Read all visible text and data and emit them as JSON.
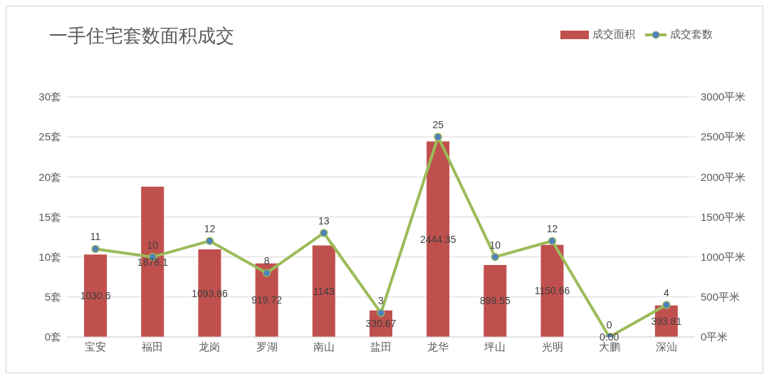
{
  "chart_data": {
    "type": "bar",
    "title": "一手住宅套数面积成交",
    "categories": [
      "宝安",
      "福田",
      "龙岗",
      "罗湖",
      "南山",
      "盐田",
      "龙华",
      "坪山",
      "光明",
      "大鹏",
      "深汕"
    ],
    "series": [
      {
        "name": "成交面积",
        "axis": "y2",
        "color": "#c0504d",
        "values": [
          1030.6,
          1878.1,
          1093.86,
          919.72,
          1143,
          330.67,
          2444.35,
          899.55,
          1150.66,
          0,
          393.81
        ],
        "value_labels": [
          "1030.6",
          "1878.1",
          "1093.86",
          "919.72",
          "1143",
          "330.67",
          "2444.35",
          "899.55",
          "1150.66",
          "0.00",
          "393.81"
        ]
      },
      {
        "name": "成交套数",
        "type": "line",
        "axis": "y",
        "color": "#9bbb59",
        "values": [
          11,
          10,
          12,
          8,
          13,
          3,
          25,
          10,
          12,
          0,
          4
        ],
        "value_labels": [
          "11",
          "10",
          "12",
          "8",
          "13",
          "3",
          "25",
          "10",
          "12",
          "0",
          "4"
        ]
      }
    ],
    "ylim": [
      0,
      30
    ],
    "yticks": [
      {
        "value": 0,
        "label": "0套"
      },
      {
        "value": 5,
        "label": "5套"
      },
      {
        "value": 10,
        "label": "10套"
      },
      {
        "value": 15,
        "label": "15套"
      },
      {
        "value": 20,
        "label": "20套"
      },
      {
        "value": 25,
        "label": "25套"
      },
      {
        "value": 30,
        "label": "30套"
      }
    ],
    "y2lim": [
      0,
      3000
    ],
    "y2ticks": [
      {
        "value": 0,
        "label": "0平米"
      },
      {
        "value": 500,
        "label": "500平米"
      },
      {
        "value": 1000,
        "label": "1000平米"
      },
      {
        "value": 1500,
        "label": "1500平米"
      },
      {
        "value": 2000,
        "label": "2000平米"
      },
      {
        "value": 2500,
        "label": "2500平米"
      },
      {
        "value": 3000,
        "label": "3000平米"
      }
    ],
    "grid": "y",
    "legend": "top right",
    "marker": "circle",
    "line_style": "solid"
  }
}
